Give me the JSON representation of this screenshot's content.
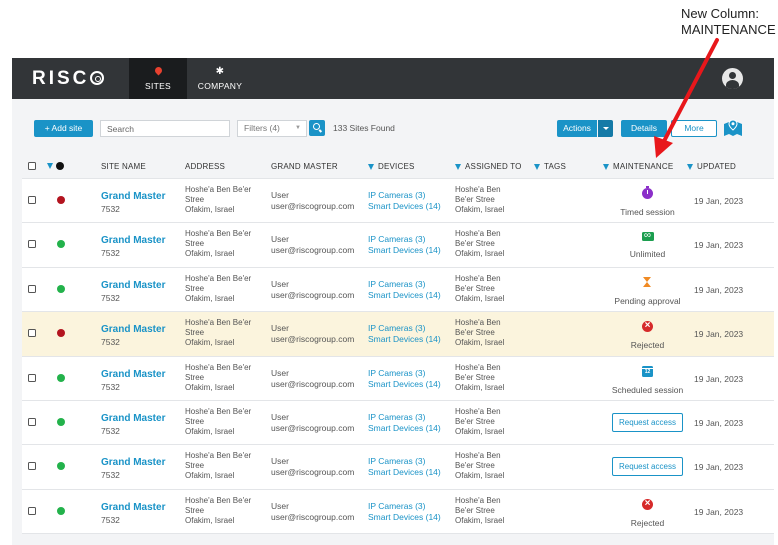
{
  "annotation": {
    "line1": "New Column:",
    "line2": "MAINTENANCE"
  },
  "nav": {
    "logo": "RISC",
    "tabs": [
      {
        "label": "SITES",
        "icon": "location-pin-icon",
        "active": true
      },
      {
        "label": "COMPANY",
        "icon": "gear-icon",
        "active": false
      }
    ],
    "user_icon": "user-avatar-icon"
  },
  "toolbar": {
    "add_site": "+  Add site",
    "search_placeholder": "Search",
    "filters": "Filters (4)",
    "sites_found": "133 Sites Found",
    "actions": "Actions",
    "details": "Details",
    "more": "More",
    "map_icon": "map-pin-icon"
  },
  "table": {
    "headers": {
      "site_name": "SITE NAME",
      "address": "ADDRESS",
      "grand_master": "GRAND MASTER",
      "devices": "DEVICES",
      "assigned_to": "ASSIGNED TO",
      "tags": "TAGS",
      "maintenance": "MAINTENANCE",
      "updated": "UPDATED"
    },
    "rows": [
      {
        "status": "red",
        "name": "Grand Master",
        "id": "7532",
        "address1": "Hoshe'a Ben Be'er",
        "address2": "Stree",
        "address3": "Ofakim, Israel",
        "gm_name": "User",
        "gm_email": "user@riscogroup.com",
        "devices1": "IP Cameras (3)",
        "devices2": "Smart Devices (14)",
        "assigned1": "Hoshe'a Ben",
        "assigned2": "Be'er Stree",
        "assigned3": "Ofakim, Israel",
        "maint_type": "timed",
        "maint_label": "Timed session",
        "updated": "19 Jan, 2023"
      },
      {
        "status": "green",
        "name": "Grand Master",
        "id": "7532",
        "address1": "Hoshe'a Ben Be'er",
        "address2": "Stree",
        "address3": "Ofakim, Israel",
        "gm_name": "User",
        "gm_email": "user@riscogroup.com",
        "devices1": "IP Cameras (3)",
        "devices2": "Smart Devices (14)",
        "assigned1": "Hoshe'a Ben",
        "assigned2": "Be'er Stree",
        "assigned3": "Ofakim, Israel",
        "maint_type": "unlimited",
        "maint_label": "Unlimited",
        "updated": "19 Jan, 2023"
      },
      {
        "status": "green",
        "name": "Grand Master",
        "id": "7532",
        "address1": "Hoshe'a Ben Be'er",
        "address2": "Stree",
        "address3": "Ofakim, Israel",
        "gm_name": "User",
        "gm_email": "user@riscogroup.com",
        "devices1": "IP Cameras (3)",
        "devices2": "Smart Devices (14)",
        "assigned1": "Hoshe'a Ben",
        "assigned2": "Be'er Stree",
        "assigned3": "Ofakim, Israel",
        "maint_type": "pending",
        "maint_label": "Pending approval",
        "updated": "19 Jan, 2023"
      },
      {
        "status": "red",
        "highlight": true,
        "name": "Grand Master",
        "id": "7532",
        "address1": "Hoshe'a Ben Be'er",
        "address2": "Stree",
        "address3": "Ofakim, Israel",
        "gm_name": "User",
        "gm_email": "user@riscogroup.com",
        "devices1": "IP Cameras (3)",
        "devices2": "Smart Devices (14)",
        "assigned1": "Hoshe'a Ben",
        "assigned2": "Be'er Stree",
        "assigned3": "Ofakim, Israel",
        "maint_type": "rejected",
        "maint_label": "Rejected",
        "updated": "19 Jan, 2023"
      },
      {
        "status": "green",
        "name": "Grand Master",
        "id": "7532",
        "address1": "Hoshe'a Ben Be'er",
        "address2": "Stree",
        "address3": "Ofakim, Israel",
        "gm_name": "User",
        "gm_email": "user@riscogroup.com",
        "devices1": "IP Cameras (3)",
        "devices2": "Smart Devices (14)",
        "assigned1": "Hoshe'a Ben",
        "assigned2": "Be'er Stree",
        "assigned3": "Ofakim, Israel",
        "maint_type": "scheduled",
        "maint_label": "Scheduled session",
        "updated": "19 Jan, 2023"
      },
      {
        "status": "green",
        "name": "Grand Master",
        "id": "7532",
        "address1": "Hoshe'a Ben Be'er",
        "address2": "Stree",
        "address3": "Ofakim, Israel",
        "gm_name": "User",
        "gm_email": "user@riscogroup.com",
        "devices1": "IP Cameras (3)",
        "devices2": "Smart Devices (14)",
        "assigned1": "Hoshe'a Ben",
        "assigned2": "Be'er Stree",
        "assigned3": "Ofakim, Israel",
        "maint_type": "request",
        "maint_label": "Request access",
        "updated": "19 Jan, 2023"
      },
      {
        "status": "green",
        "name": "Grand Master",
        "id": "7532",
        "address1": "Hoshe'a Ben Be'er",
        "address2": "Stree",
        "address3": "Ofakim, Israel",
        "gm_name": "User",
        "gm_email": "user@riscogroup.com",
        "devices1": "IP Cameras (3)",
        "devices2": "Smart Devices (14)",
        "assigned1": "Hoshe'a Ben",
        "assigned2": "Be'er Stree",
        "assigned3": "Ofakim, Israel",
        "maint_type": "request",
        "maint_label": "Request access",
        "updated": "19 Jan, 2023"
      },
      {
        "status": "green",
        "name": "Grand Master",
        "id": "7532",
        "address1": "Hoshe'a Ben Be'er",
        "address2": "Stree",
        "address3": "Ofakim, Israel",
        "gm_name": "User",
        "gm_email": "user@riscogroup.com",
        "devices1": "IP Cameras (3)",
        "devices2": "Smart Devices (14)",
        "assigned1": "Hoshe'a Ben",
        "assigned2": "Be'er Stree",
        "assigned3": "Ofakim, Israel",
        "maint_type": "rejected",
        "maint_label": "Rejected",
        "updated": "19 Jan, 2023"
      }
    ]
  },
  "colors": {
    "accent": "#1a93c7",
    "navbar": "#323538",
    "status_red": "#b3141f",
    "status_green": "#23b24b",
    "highlight_row": "#fbf4dd",
    "arrow": "#e8171b"
  }
}
